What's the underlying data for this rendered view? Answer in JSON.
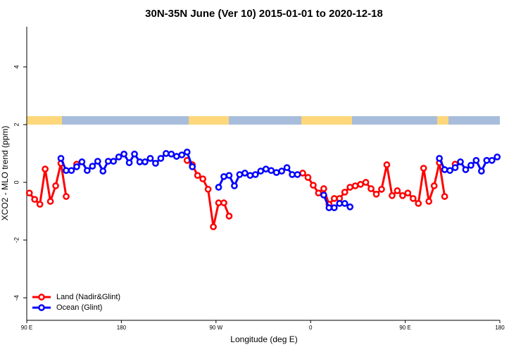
{
  "chart_data": {
    "type": "line",
    "title": "30N-35N June (Ver 10)   2015-01-01 to 2020-12-18",
    "x_label": "Longitude (deg E)",
    "y_label": "XCO2 - MLO trend (ppm)",
    "xlim": [
      90,
      540
    ],
    "ylim": [
      -4.78,
      5.39
    ],
    "xticks": [
      {
        "value": 90,
        "label": "90 E"
      },
      180,
      {
        "value": 270,
        "label": "90 W"
      },
      {
        "value": 360,
        "label": "0"
      },
      {
        "value": 450,
        "label": "90 E"
      },
      {
        "value": 540,
        "label": "180"
      }
    ],
    "yticks": [
      -4,
      -2,
      0,
      2,
      4
    ],
    "legend": "bottom-left",
    "series": [
      {
        "name": "Land (Nadir&Glint)",
        "color": "#ff0000",
        "x": [
          92.5,
          97.5,
          102.5,
          107.5,
          112.5,
          117.5,
          122.5,
          127.5,
          132.5,
          137.5,
          190,
          242.5,
          247.5,
          252.5,
          257.5,
          262.5,
          267.5,
          272.5,
          277.5,
          282.5,
          317.5,
          352.5,
          357.5,
          362.5,
          367.5,
          372.5,
          377.5,
          382.5,
          387.5,
          392.5,
          397.5,
          402.5,
          407.5,
          412.5,
          417.5,
          422.5,
          427.5,
          432.5,
          437.5,
          442.5,
          447.5,
          452.5,
          457.5,
          462.5,
          467.5,
          472.5,
          477.5,
          482.5,
          487.5,
          492.5,
          497.5
        ],
        "values": [
          -0.37,
          -0.59,
          -0.76,
          0.46,
          -0.66,
          -0.12,
          0.66,
          -0.49,
          null,
          0.63,
          null,
          0.76,
          0.61,
          0.24,
          0.12,
          -0.24,
          -1.54,
          -0.71,
          -0.71,
          -1.17,
          null,
          0.32,
          0.17,
          -0.1,
          -0.37,
          -0.22,
          -0.76,
          -0.56,
          -0.56,
          -0.34,
          -0.17,
          -0.12,
          -0.07,
          0,
          -0.22,
          -0.41,
          -0.24,
          0.61,
          -0.46,
          -0.29,
          -0.46,
          -0.37,
          -0.56,
          -0.73,
          0.49,
          -0.66,
          -0.12,
          0.68,
          -0.49,
          null,
          0.63
        ]
      },
      {
        "name": "Ocean (Glint)",
        "color": "#0000ff",
        "x": [
          122.5,
          127.5,
          132.5,
          137.5,
          142.5,
          147.5,
          152.5,
          157.5,
          162.5,
          167.5,
          172.5,
          177.5,
          182.5,
          187.5,
          192.5,
          197.5,
          202.5,
          207.5,
          212.5,
          217.5,
          222.5,
          227.5,
          232.5,
          237.5,
          242.5,
          247.5,
          260,
          272.5,
          277.5,
          282.5,
          287.5,
          292.5,
          297.5,
          302.5,
          307.5,
          312.5,
          317.5,
          322.5,
          327.5,
          332.5,
          337.5,
          342.5,
          347.5,
          360,
          372.5,
          377.5,
          382.5,
          387.5,
          392.5,
          397.5,
          440,
          482.5,
          487.5,
          492.5,
          497.5,
          502.5,
          507.5,
          512.5,
          517.5,
          522.5,
          527.5,
          532.5,
          537.5
        ],
        "values": [
          0.83,
          0.41,
          0.41,
          0.54,
          0.71,
          0.41,
          0.56,
          0.73,
          0.39,
          0.73,
          0.73,
          0.88,
          0.98,
          0.68,
          0.98,
          0.71,
          0.71,
          0.83,
          0.66,
          0.83,
          1.0,
          0.98,
          0.9,
          0.95,
          1.05,
          0.54,
          null,
          -0.17,
          0.2,
          0.24,
          -0.12,
          0.27,
          0.32,
          0.24,
          0.27,
          0.39,
          0.46,
          0.41,
          0.34,
          0.39,
          0.51,
          0.27,
          0.27,
          null,
          -0.44,
          -0.88,
          -0.88,
          -0.73,
          -0.73,
          -0.85,
          null,
          0.83,
          0.44,
          0.41,
          0.51,
          0.71,
          0.44,
          0.59,
          0.76,
          0.39,
          0.76,
          0.76,
          0.88
        ]
      }
    ]
  }
}
